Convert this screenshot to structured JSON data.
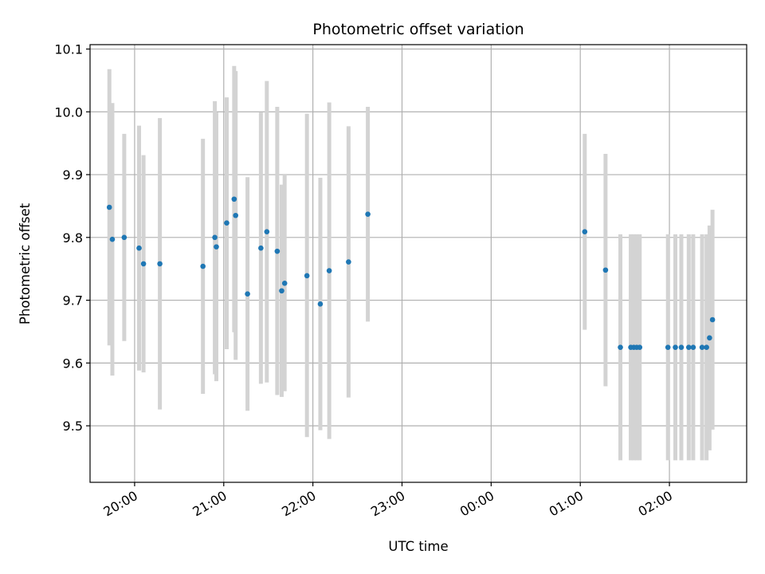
{
  "chart_data": {
    "type": "scatter",
    "title": "Photometric offset variation",
    "xlabel": "UTC time",
    "ylabel": "Photometric offset",
    "x_axis_kind": "time",
    "xlim": [
      "19:30",
      "02:52"
    ],
    "ylim": [
      9.41,
      10.107
    ],
    "grid": true,
    "x_ticks": [
      "20:00",
      "21:00",
      "22:00",
      "23:00",
      "00:00",
      "01:00",
      "02:00"
    ],
    "y_ticks": [
      "9.5",
      "9.6",
      "9.7",
      "9.8",
      "9.9",
      "10.0",
      "10.1"
    ],
    "colors": {
      "point": "#1f77b4",
      "errorbar": "#d3d3d3",
      "grid": "#b0b0b0"
    },
    "points": [
      {
        "x": "19:43",
        "y": 9.848,
        "low": 9.628,
        "high": 10.068
      },
      {
        "x": "19:45",
        "y": 9.797,
        "low": 9.58,
        "high": 10.014
      },
      {
        "x": "19:53",
        "y": 9.8,
        "low": 9.635,
        "high": 9.965
      },
      {
        "x": "20:03",
        "y": 9.783,
        "low": 9.588,
        "high": 9.978
      },
      {
        "x": "20:06",
        "y": 9.758,
        "low": 9.585,
        "high": 9.931
      },
      {
        "x": "20:17",
        "y": 9.758,
        "low": 9.526,
        "high": 9.99
      },
      {
        "x": "20:46",
        "y": 9.754,
        "low": 9.551,
        "high": 9.957
      },
      {
        "x": "20:54",
        "y": 9.8,
        "low": 9.582,
        "high": 10.017
      },
      {
        "x": "20:55",
        "y": 9.785,
        "low": 9.571,
        "high": 9.999
      },
      {
        "x": "21:02",
        "y": 9.823,
        "low": 9.622,
        "high": 10.023
      },
      {
        "x": "21:07",
        "y": 9.861,
        "low": 9.649,
        "high": 10.073
      },
      {
        "x": "21:08",
        "y": 9.835,
        "low": 9.605,
        "high": 10.065
      },
      {
        "x": "21:16",
        "y": 9.71,
        "low": 9.524,
        "high": 9.896
      },
      {
        "x": "21:25",
        "y": 9.783,
        "low": 9.567,
        "high": 9.999
      },
      {
        "x": "21:29",
        "y": 9.809,
        "low": 9.569,
        "high": 10.049
      },
      {
        "x": "21:36",
        "y": 9.778,
        "low": 9.549,
        "high": 10.008
      },
      {
        "x": "21:39",
        "y": 9.715,
        "low": 9.546,
        "high": 9.884
      },
      {
        "x": "21:41",
        "y": 9.727,
        "low": 9.555,
        "high": 9.9
      },
      {
        "x": "21:56",
        "y": 9.739,
        "low": 9.482,
        "high": 9.997
      },
      {
        "x": "22:05",
        "y": 9.694,
        "low": 9.493,
        "high": 9.895
      },
      {
        "x": "22:11",
        "y": 9.747,
        "low": 9.479,
        "high": 10.015
      },
      {
        "x": "22:24",
        "y": 9.761,
        "low": 9.545,
        "high": 9.977
      },
      {
        "x": "22:37",
        "y": 9.837,
        "low": 9.666,
        "high": 10.008
      },
      {
        "x": "01:03",
        "y": 9.809,
        "low": 9.653,
        "high": 9.965
      },
      {
        "x": "01:17",
        "y": 9.748,
        "low": 9.563,
        "high": 9.933
      },
      {
        "x": "01:27",
        "y": 9.625,
        "low": 9.445,
        "high": 9.805
      },
      {
        "x": "01:34",
        "y": 9.625,
        "low": 9.445,
        "high": 9.805
      },
      {
        "x": "01:36",
        "y": 9.625,
        "low": 9.445,
        "high": 9.805
      },
      {
        "x": "01:38",
        "y": 9.625,
        "low": 9.445,
        "high": 9.805
      },
      {
        "x": "01:40",
        "y": 9.625,
        "low": 9.445,
        "high": 9.805
      },
      {
        "x": "01:59",
        "y": 9.625,
        "low": 9.445,
        "high": 9.805
      },
      {
        "x": "02:04",
        "y": 9.625,
        "low": 9.445,
        "high": 9.805
      },
      {
        "x": "02:08",
        "y": 9.625,
        "low": 9.445,
        "high": 9.805
      },
      {
        "x": "02:13",
        "y": 9.625,
        "low": 9.445,
        "high": 9.805
      },
      {
        "x": "02:16",
        "y": 9.625,
        "low": 9.445,
        "high": 9.805
      },
      {
        "x": "02:22",
        "y": 9.625,
        "low": 9.445,
        "high": 9.805
      },
      {
        "x": "02:25",
        "y": 9.625,
        "low": 9.445,
        "high": 9.805
      },
      {
        "x": "02:27",
        "y": 9.64,
        "low": 9.461,
        "high": 9.819
      },
      {
        "x": "02:29",
        "y": 9.669,
        "low": 9.494,
        "high": 9.844
      }
    ]
  }
}
